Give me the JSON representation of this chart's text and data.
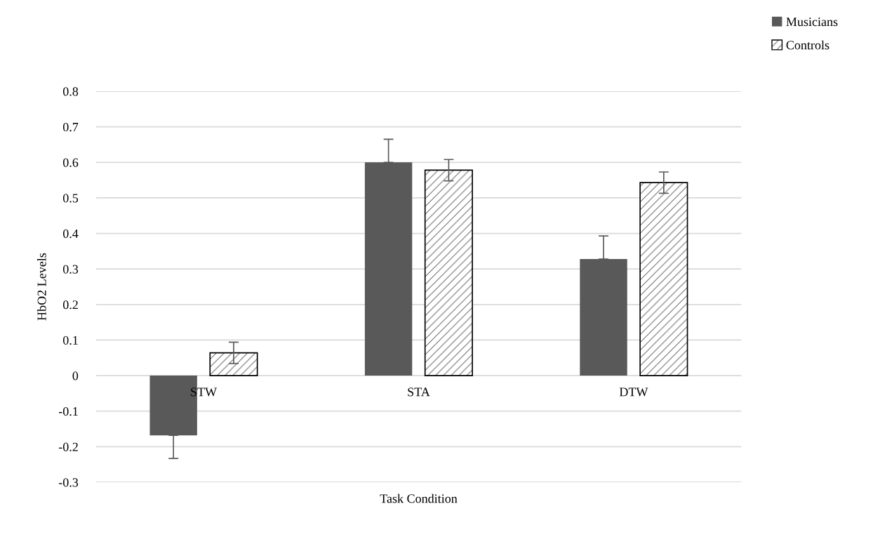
{
  "chart_data": {
    "type": "bar",
    "xlabel": "Task Condition",
    "ylabel": "HbO2 Levels",
    "categories": [
      "STW",
      "STA",
      "DTW"
    ],
    "series": [
      {
        "name": "Musicians",
        "color": "#595959",
        "values": [
          -0.168,
          0.6,
          0.328
        ],
        "errors": [
          [
            -0.233,
            -0.168
          ],
          [
            0.6,
            0.665
          ],
          [
            0.328,
            0.393
          ]
        ]
      },
      {
        "name": "Controls",
        "color": "#ffffff",
        "values": [
          0.064,
          0.578,
          0.543
        ],
        "errors": [
          0.03,
          0.03,
          0.03
        ]
      }
    ],
    "ylim": [
      -0.3,
      0.8
    ],
    "yticks": [
      -0.3,
      -0.2,
      -0.1,
      0,
      0.1,
      0.2,
      0.3,
      0.4,
      0.5,
      0.6,
      0.7,
      0.8
    ],
    "grid": "y",
    "legend": "top right"
  }
}
